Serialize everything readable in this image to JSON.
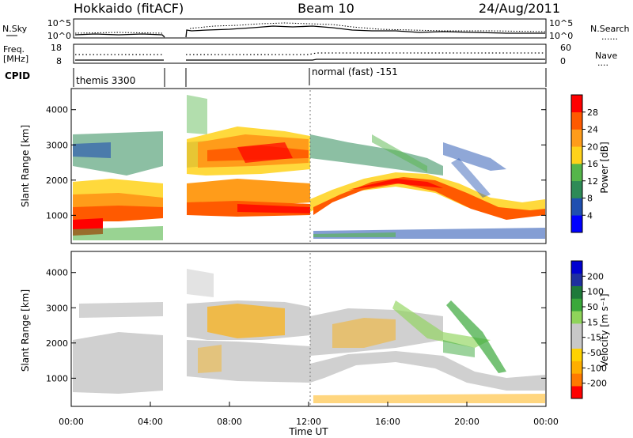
{
  "header": {
    "station": "Hokkaido (fitACF)",
    "beam": "Beam 10",
    "date": "24/Aug/2011"
  },
  "nsky_panel": {
    "left_label": "N.Sky",
    "right_label": "N.Search",
    "right_dots": "......",
    "ytick_top": "10^5",
    "ytick_bottom": "10^0"
  },
  "freq_panel": {
    "left_label_1": "Freq.",
    "left_label_2": "[MHz]",
    "right_label": "Nave",
    "right_dots": "....",
    "left_tick_top": "18",
    "left_tick_bottom": "8",
    "right_tick_top": "60",
    "right_tick_bottom": "0"
  },
  "cpid": {
    "label": "CPID",
    "mode_1": "themis 3300",
    "mode_2": "normal (fast) -151"
  },
  "colors": {
    "power": [
      "#0000ff",
      "#1f4fb0",
      "#2e8b57",
      "#55b64a",
      "#ffd21a",
      "#ff9c1a",
      "#ff5a00",
      "#ff0000"
    ],
    "velocity": [
      "#ff0000",
      "#ff7a00",
      "#ffae00",
      "#ffd200",
      "#c8c8c8",
      "#c8c8c8",
      "#8fd45a",
      "#3aa83a",
      "#1f7a3a",
      "#1f2f9f",
      "#0000d0"
    ]
  },
  "chart_data": [
    {
      "type": "heatmap",
      "title": "Power",
      "ylabel": "Slant Range [km]",
      "yticks": [
        "1000",
        "2000",
        "3000",
        "4000"
      ],
      "ylim": [
        200,
        4600
      ],
      "colorbar_label": "Power [dB]",
      "colorbar_ticks": [
        "4",
        "8",
        "12",
        "16",
        "20",
        "24",
        "28"
      ],
      "colorbar_range": [
        0,
        32
      ],
      "data_gap_hours": [
        4.8,
        5.8
      ],
      "bands": [
        {
          "x": [
            0,
            5
          ],
          "y": [
            600,
            1400
          ],
          "value": 24
        },
        {
          "x": [
            0,
            5
          ],
          "y": [
            1900,
            3100
          ],
          "value": 14
        },
        {
          "x": [
            5.8,
            12
          ],
          "y": [
            1000,
            1600
          ],
          "value": 24
        },
        {
          "x": [
            5.8,
            12
          ],
          "y": [
            1800,
            3000
          ],
          "value": 22
        },
        {
          "x": [
            12,
            20
          ],
          "y": [
            1400,
            2600
          ],
          "value": 18
        },
        {
          "x": [
            19,
            24
          ],
          "y": [
            800,
            1600
          ],
          "value": 22
        },
        {
          "x": [
            12,
            24
          ],
          "y": [
            200,
            600
          ],
          "value": 6
        }
      ]
    },
    {
      "type": "heatmap",
      "title": "Velocity",
      "ylabel": "Slant Range [km]",
      "yticks": [
        "1000",
        "2000",
        "3000",
        "4000"
      ],
      "ylim": [
        200,
        4600
      ],
      "xlabel": "Time UT",
      "xticks": [
        "00:00",
        "04:00",
        "08:00",
        "12:00",
        "16:00",
        "20:00",
        "00:00"
      ],
      "xlim_hours": [
        0,
        24
      ],
      "colorbar_label": "Velocity [m s⁻¹]",
      "colorbar_ticks": [
        "-200",
        "-100",
        "-50",
        "-15",
        "15",
        "50",
        "100",
        "200"
      ],
      "data_gap_hours": [
        4.8,
        5.8
      ],
      "bands": [
        {
          "x": [
            0,
            5
          ],
          "y": [
            700,
            1800
          ],
          "value": 0
        },
        {
          "x": [
            5.8,
            12
          ],
          "y": [
            1000,
            3000
          ],
          "value": -20
        },
        {
          "x": [
            12,
            20
          ],
          "y": [
            1600,
            2800
          ],
          "value": 0
        },
        {
          "x": [
            17,
            20
          ],
          "y": [
            1800,
            3000
          ],
          "value": 40
        },
        {
          "x": [
            19,
            24
          ],
          "y": [
            900,
            1600
          ],
          "value": 0
        }
      ]
    }
  ]
}
